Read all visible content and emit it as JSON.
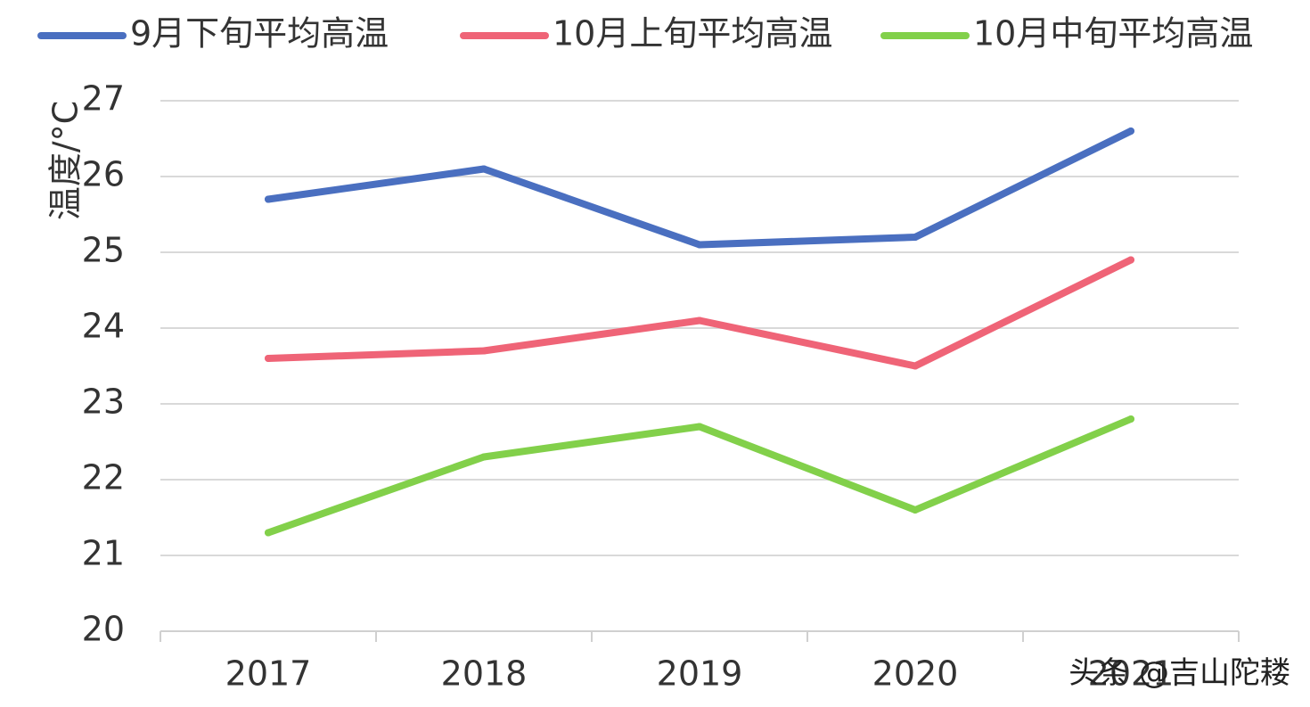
{
  "chart_data": {
    "type": "line",
    "categories": [
      "2017",
      "2018",
      "2019",
      "2020",
      "2021"
    ],
    "series": [
      {
        "name": "9月下旬平均高温",
        "color": "#4a6fc0",
        "values": [
          25.7,
          26.1,
          25.1,
          25.2,
          26.6
        ]
      },
      {
        "name": "10月上旬平均高温",
        "color": "#ef6477",
        "values": [
          23.6,
          23.7,
          24.1,
          23.5,
          24.9
        ]
      },
      {
        "name": "10月中旬平均高温",
        "color": "#82d04a",
        "values": [
          21.3,
          22.3,
          22.7,
          21.6,
          22.8
        ]
      }
    ],
    "ylabel": "温度/°C",
    "xlabel": "",
    "ylim": [
      20,
      27
    ],
    "yticks": [
      20,
      21,
      22,
      23,
      24,
      25,
      26,
      27
    ],
    "grid": true,
    "legend_position": "top"
  },
  "watermark": "头条 @吉山陀耧"
}
